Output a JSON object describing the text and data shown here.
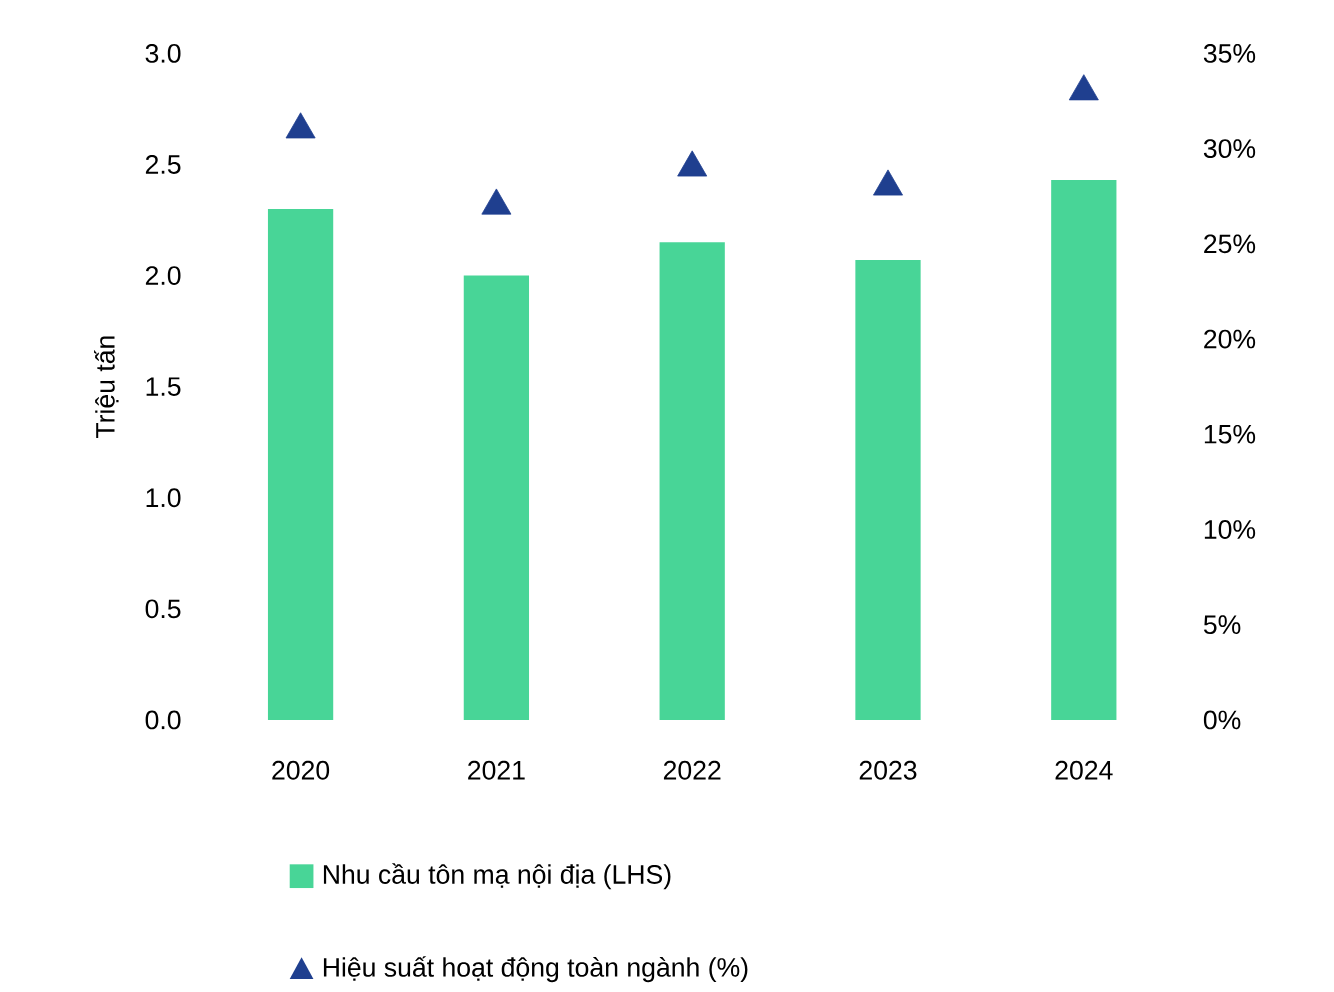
{
  "chart_data": {
    "type": "bar",
    "ylabel": "Triệu tấn",
    "categories": [
      "2020",
      "2021",
      "2022",
      "2023",
      "2024"
    ],
    "series": [
      {
        "name": "Nhu cầu tôn mạ nội địa (LHS)",
        "color": "#48d597",
        "values": [
          2.3,
          2.0,
          2.15,
          2.07,
          2.43
        ]
      },
      {
        "name": "Hiệu suất hoạt động toàn ngành (%)",
        "type": "scatter",
        "axis": "y2",
        "marker": "triangle",
        "color": "#1f3f8f",
        "values": [
          31,
          27,
          29,
          28,
          33
        ]
      }
    ],
    "ylim": [
      0,
      3
    ],
    "yticks": [
      {
        "value": 0,
        "label": "0.0"
      },
      {
        "value": 0.5,
        "label": "0.5"
      },
      {
        "value": 1,
        "label": "1.0"
      },
      {
        "value": 1.5,
        "label": "1.5"
      },
      {
        "value": 2,
        "label": "2.0"
      },
      {
        "value": 2.5,
        "label": "2.5"
      },
      {
        "value": 3,
        "label": "3.0"
      }
    ],
    "y2lim": [
      0,
      35
    ],
    "y2ticks": [
      {
        "value": 0,
        "label": "0%"
      },
      {
        "value": 5,
        "label": "5%"
      },
      {
        "value": 10,
        "label": "10%"
      },
      {
        "value": 15,
        "label": "15%"
      },
      {
        "value": 20,
        "label": "20%"
      },
      {
        "value": 25,
        "label": "25%"
      },
      {
        "value": 30,
        "label": "30%"
      },
      {
        "value": 35,
        "label": "35%"
      }
    ],
    "legend": "bottom"
  }
}
